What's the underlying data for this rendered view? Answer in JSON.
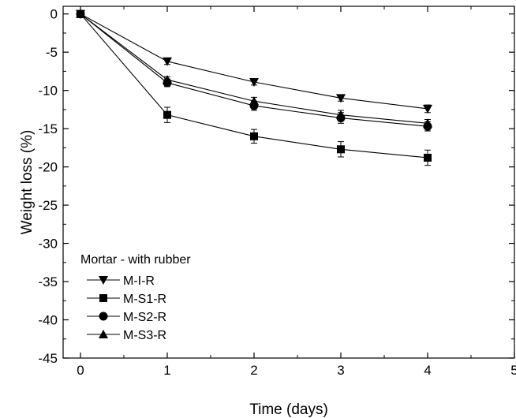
{
  "chart_data": {
    "type": "line",
    "xlabel": "Time (days)",
    "ylabel": "Weight loss (%)",
    "xlim": [
      -0.2,
      5
    ],
    "ylim": [
      -45,
      1
    ],
    "xticks": [
      0,
      1,
      2,
      3,
      4,
      5
    ],
    "yticks": [
      0,
      -5,
      -10,
      -15,
      -20,
      -25,
      -30,
      -35,
      -40,
      -45
    ],
    "x": [
      0,
      1,
      2,
      3,
      4
    ],
    "legend": {
      "title": "Mortar - with rubber",
      "position": "lower-left"
    },
    "grid": false,
    "series": [
      {
        "name": "M-I-R",
        "marker": "triangle-down",
        "values": [
          0,
          -6.2,
          -8.9,
          -11.0,
          -12.4
        ],
        "errors": [
          0,
          0.4,
          0.4,
          0.4,
          0.5
        ]
      },
      {
        "name": "M-S1-R",
        "marker": "square",
        "values": [
          0,
          -13.2,
          -16.0,
          -17.7,
          -18.8
        ],
        "errors": [
          0,
          1.0,
          0.9,
          1.0,
          1.0
        ]
      },
      {
        "name": "M-S2-R",
        "marker": "circle",
        "values": [
          0,
          -9.0,
          -12.0,
          -13.6,
          -14.7
        ],
        "errors": [
          0,
          0.5,
          0.6,
          0.7,
          0.6
        ]
      },
      {
        "name": "M-S3-R",
        "marker": "triangle-up",
        "values": [
          0,
          -8.6,
          -11.4,
          -13.2,
          -14.3
        ],
        "errors": [
          0,
          0.4,
          0.5,
          0.6,
          0.5
        ]
      }
    ]
  }
}
